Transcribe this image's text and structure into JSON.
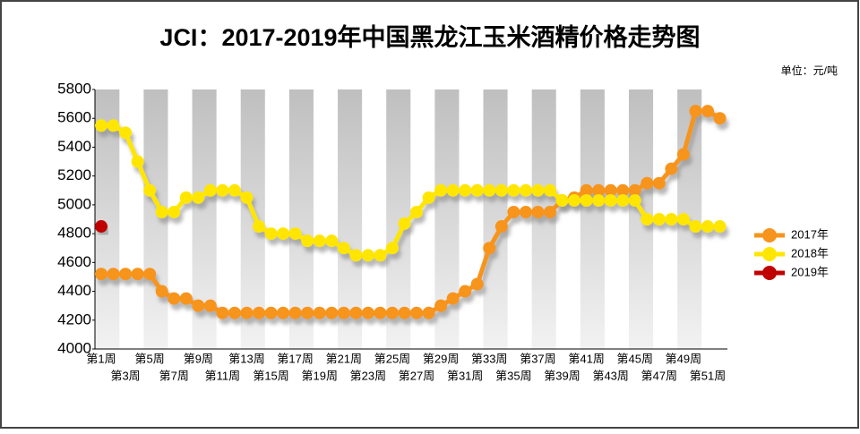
{
  "chart_data": {
    "type": "line",
    "title": "JCI：2017-2019年中国黑龙江玉米酒精价格走势图",
    "unit": "单位：元/吨",
    "categories": [
      "第1周",
      null,
      "第3周",
      null,
      "第5周",
      null,
      "第7周",
      null,
      "第9周",
      null,
      "第11周",
      null,
      "第13周",
      null,
      "第15周",
      null,
      "第17周",
      null,
      "第19周",
      null,
      "第21周",
      null,
      "第23周",
      null,
      "第25周",
      null,
      "第27周",
      null,
      "第29周",
      null,
      "第31周",
      null,
      "第33周",
      null,
      "第35周",
      null,
      "第37周",
      null,
      "第39周",
      null,
      "第41周",
      null,
      "第43周",
      null,
      "第45周",
      null,
      "第47周",
      null,
      "第49周",
      null,
      "第51周",
      null
    ],
    "series": [
      {
        "name": "2017年",
        "color": "#f7941d",
        "values": [
          4520,
          4520,
          4520,
          4520,
          4520,
          4400,
          4350,
          4350,
          4300,
          4300,
          4250,
          4250,
          4250,
          4250,
          4250,
          4250,
          4250,
          4250,
          4250,
          4250,
          4250,
          4250,
          4250,
          4250,
          4250,
          4250,
          4250,
          4250,
          4300,
          4350,
          4400,
          4450,
          4700,
          4850,
          4950,
          4950,
          4950,
          4950,
          5030,
          5050,
          5100,
          5100,
          5100,
          5100,
          5100,
          5150,
          5150,
          5250,
          5350,
          5650,
          5650,
          5600
        ]
      },
      {
        "name": "2018年",
        "color": "#ffe600",
        "values": [
          5550,
          5550,
          5500,
          5300,
          5100,
          4950,
          4950,
          5050,
          5050,
          5100,
          5100,
          5100,
          5050,
          4850,
          4800,
          4800,
          4800,
          4750,
          4750,
          4750,
          4700,
          4650,
          4650,
          4650,
          4700,
          4870,
          4950,
          5050,
          5100,
          5100,
          5100,
          5100,
          5100,
          5100,
          5100,
          5100,
          5100,
          5100,
          5030,
          5030,
          5030,
          5030,
          5030,
          5030,
          5030,
          4900,
          4900,
          4900,
          4900,
          4850,
          4850,
          4850
        ]
      },
      {
        "name": "2019年",
        "color": "#c00000",
        "values": [
          4850,
          null,
          null,
          null,
          null,
          null,
          null,
          null,
          null,
          null,
          null,
          null,
          null,
          null,
          null,
          null,
          null,
          null,
          null,
          null,
          null,
          null,
          null,
          null,
          null,
          null,
          null,
          null,
          null,
          null,
          null,
          null,
          null,
          null,
          null,
          null,
          null,
          null,
          null,
          null,
          null,
          null,
          null,
          null,
          null,
          null,
          null,
          null,
          null,
          null,
          null,
          null
        ]
      }
    ],
    "ylim": [
      4000,
      5800
    ],
    "yticks": [
      4000,
      4200,
      4400,
      4600,
      4800,
      5000,
      5200,
      5400,
      5600,
      5800
    ],
    "grid": false,
    "legend": "right"
  }
}
